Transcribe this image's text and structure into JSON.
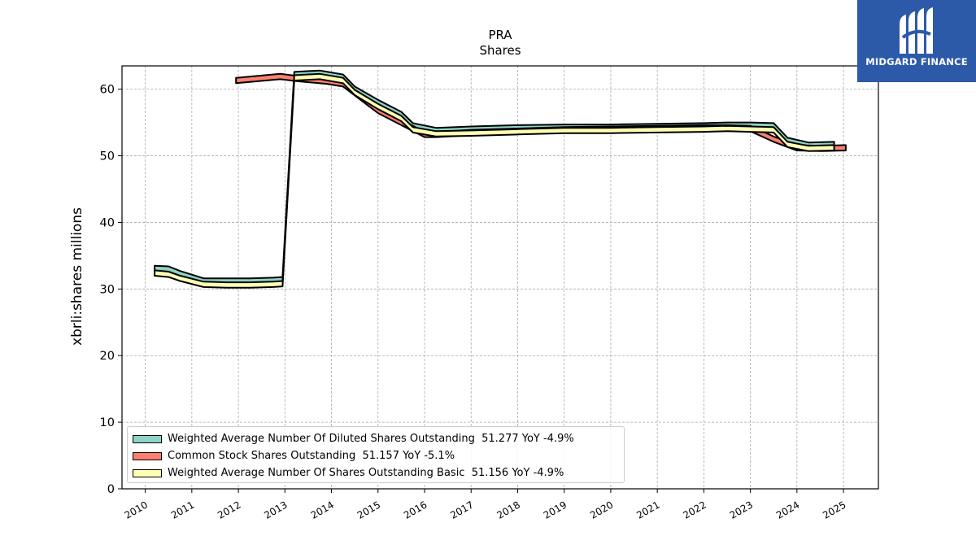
{
  "chart_data": {
    "type": "line",
    "title": "PRA",
    "subtitle": "Shares",
    "xlabel": "",
    "ylabel": "xbrli:shares millions",
    "xlim": [
      2009.5,
      2025.75
    ],
    "ylim": [
      0,
      63.5
    ],
    "yticks": [
      "0",
      "10",
      "20",
      "30",
      "40",
      "50",
      "60"
    ],
    "xticks": [
      "2010",
      "2011",
      "2012",
      "2013",
      "2014",
      "2015",
      "2016",
      "2017",
      "2018",
      "2019",
      "2020",
      "2021",
      "2022",
      "2023",
      "2024",
      "2025"
    ],
    "grid": true,
    "legend_position": "lower-left",
    "series": [
      {
        "name": "Weighted Average Number Of Diluted Shares Outstanding",
        "legend": "Weighted Average Number Of Diluted Shares Outstanding  51.277 YoY -4.9%",
        "color": "#8dd3c7",
        "x": [
          2010.2,
          2010.5,
          2010.75,
          2011.25,
          2011.75,
          2012.25,
          2012.75,
          2012.95,
          2013.2,
          2013.75,
          2014.25,
          2014.5,
          2015.0,
          2015.5,
          2015.75,
          2016.25,
          2017.0,
          2018.0,
          2019.0,
          2020.0,
          2021.0,
          2022.0,
          2022.5,
          2023.0,
          2023.5,
          2023.8,
          2024.25,
          2024.8
        ],
        "y": [
          33.1,
          33.0,
          32.3,
          31.2,
          31.2,
          31.2,
          31.3,
          31.4,
          62.2,
          62.4,
          61.8,
          60.0,
          58.0,
          56.2,
          54.5,
          53.8,
          54.0,
          54.2,
          54.3,
          54.3,
          54.4,
          54.5,
          54.6,
          54.6,
          54.5,
          52.3,
          51.6,
          51.7
        ]
      },
      {
        "name": "Common Stock Shares Outstanding",
        "legend": "Common Stock Shares Outstanding  51.157 YoY -5.1%",
        "color": "#fb8072",
        "x": [
          2011.95,
          2012.9,
          2013.25,
          2013.9,
          2014.25,
          2015.0,
          2016.0,
          2016.25,
          2017.0,
          2018.0,
          2019.0,
          2020.0,
          2021.0,
          2022.0,
          2022.5,
          2023.0,
          2023.5,
          2024.0,
          2024.5,
          2025.05
        ],
        "y": [
          61.3,
          61.9,
          61.6,
          61.2,
          60.8,
          56.8,
          53.2,
          53.2,
          53.5,
          53.7,
          53.9,
          54.0,
          54.1,
          54.2,
          54.2,
          54.1,
          52.5,
          51.2,
          51.1,
          51.2
        ]
      },
      {
        "name": "Weighted Average Number Of Shares Outstanding Basic",
        "legend": "Weighted Average Number Of Shares Outstanding Basic  51.156 YoY -4.9%",
        "color": "#ffffb3",
        "x": [
          2010.2,
          2010.5,
          2010.75,
          2011.25,
          2011.75,
          2012.25,
          2012.75,
          2012.95,
          2013.2,
          2013.75,
          2014.25,
          2014.5,
          2015.0,
          2015.5,
          2015.75,
          2016.25,
          2017.0,
          2018.0,
          2019.0,
          2020.0,
          2021.0,
          2022.0,
          2022.5,
          2023.0,
          2023.5,
          2023.8,
          2024.25,
          2024.8
        ],
        "y": [
          32.4,
          32.2,
          31.6,
          30.7,
          30.6,
          30.6,
          30.7,
          30.8,
          61.7,
          61.9,
          61.3,
          59.5,
          57.4,
          55.6,
          53.9,
          53.3,
          53.4,
          53.6,
          53.8,
          53.8,
          53.9,
          54.0,
          54.1,
          54.0,
          53.9,
          51.7,
          51.1,
          51.2
        ]
      }
    ]
  },
  "logo": {
    "name": "MIDGARD FINANCE",
    "mark": "M"
  }
}
